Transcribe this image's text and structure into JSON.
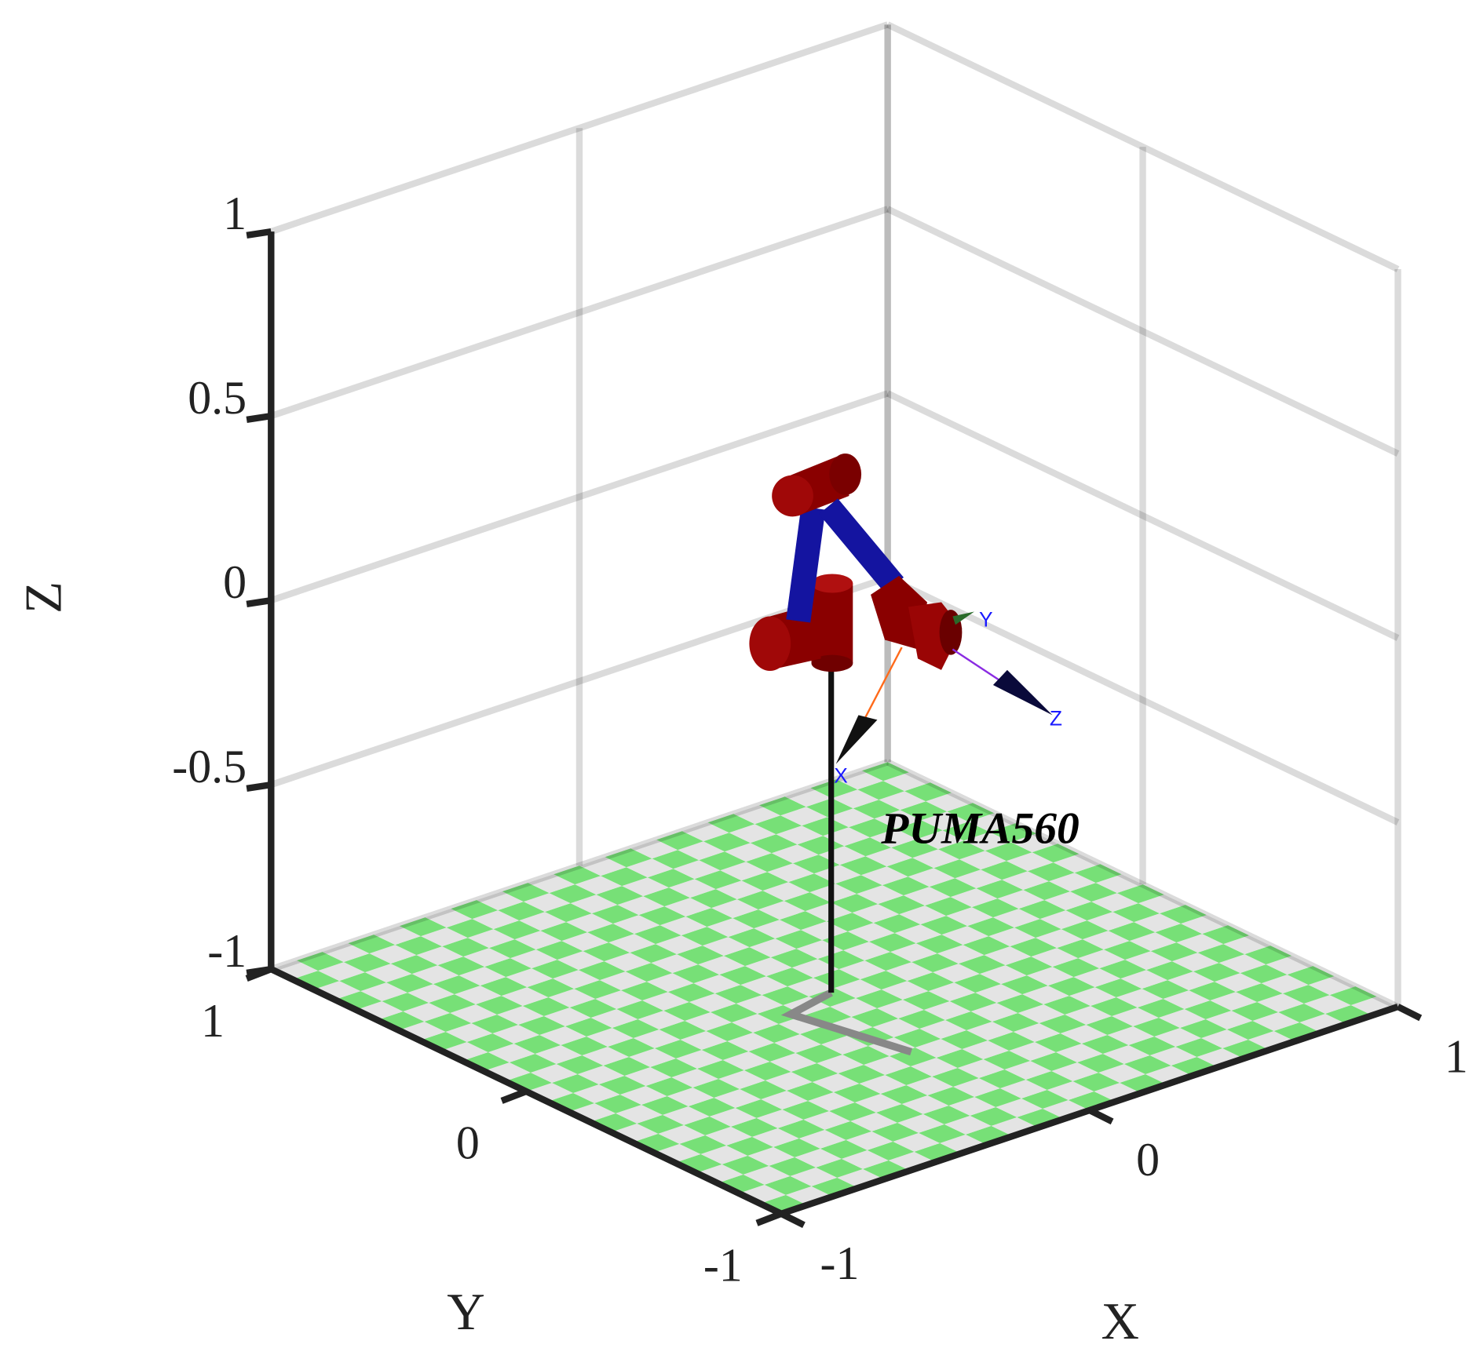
{
  "chart_data": {
    "type": "3d",
    "xlabel": "X",
    "ylabel": "Y",
    "zlabel": "Z",
    "xlim": [
      -1,
      1
    ],
    "ylim": [
      -1,
      1
    ],
    "zlim": [
      -1,
      1
    ],
    "xticks": [
      -1,
      0,
      1
    ],
    "yticks": [
      -1,
      0,
      1
    ],
    "zticks": [
      -1,
      -0.5,
      0,
      0.5,
      1
    ],
    "grid": true,
    "annotation": "PUMA560",
    "frame_axes": [
      "X",
      "Y",
      "Z"
    ]
  }
}
